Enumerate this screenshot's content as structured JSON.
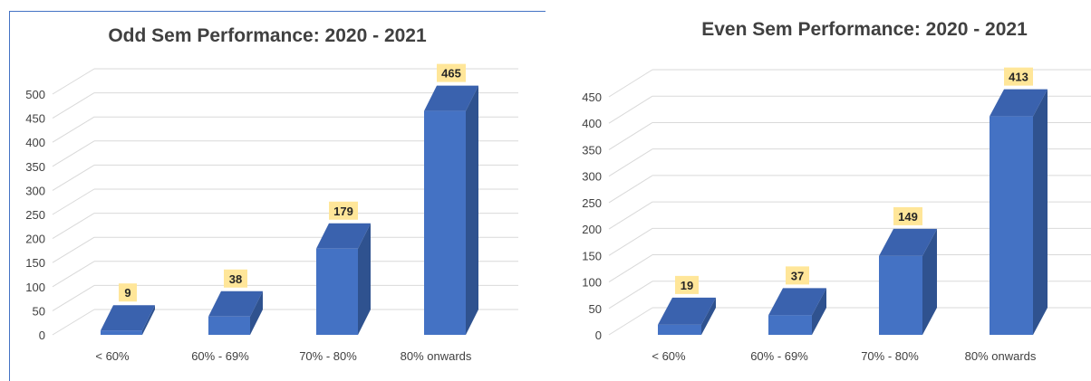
{
  "chart_data": [
    {
      "type": "bar",
      "title": "Odd Sem Performance: 2020 - 2021",
      "categories": [
        "< 60%",
        "60% - 69%",
        "70% - 80%",
        "80% onwards"
      ],
      "values": [
        9,
        38,
        179,
        465
      ],
      "ylim": [
        0,
        500
      ],
      "yticks": [
        0,
        50,
        100,
        150,
        200,
        250,
        300,
        350,
        400,
        450,
        500
      ],
      "xlabel": "",
      "ylabel": "",
      "grid": true,
      "legend": "none",
      "bar_color": "#4472C4",
      "label_color": "#FFE699",
      "three_d": true
    },
    {
      "type": "bar",
      "title": "Even Sem Performance: 2020 - 2021",
      "categories": [
        "< 60%",
        "60% - 69%",
        "70% - 80%",
        "80% onwards"
      ],
      "values": [
        19,
        37,
        149,
        413
      ],
      "ylim": [
        0,
        450
      ],
      "yticks": [
        0,
        50,
        100,
        150,
        200,
        250,
        300,
        350,
        400,
        450
      ],
      "xlabel": "",
      "ylabel": "",
      "grid": true,
      "legend": "none",
      "bar_color": "#4472C4",
      "label_color": "#FFE699",
      "three_d": true
    }
  ]
}
